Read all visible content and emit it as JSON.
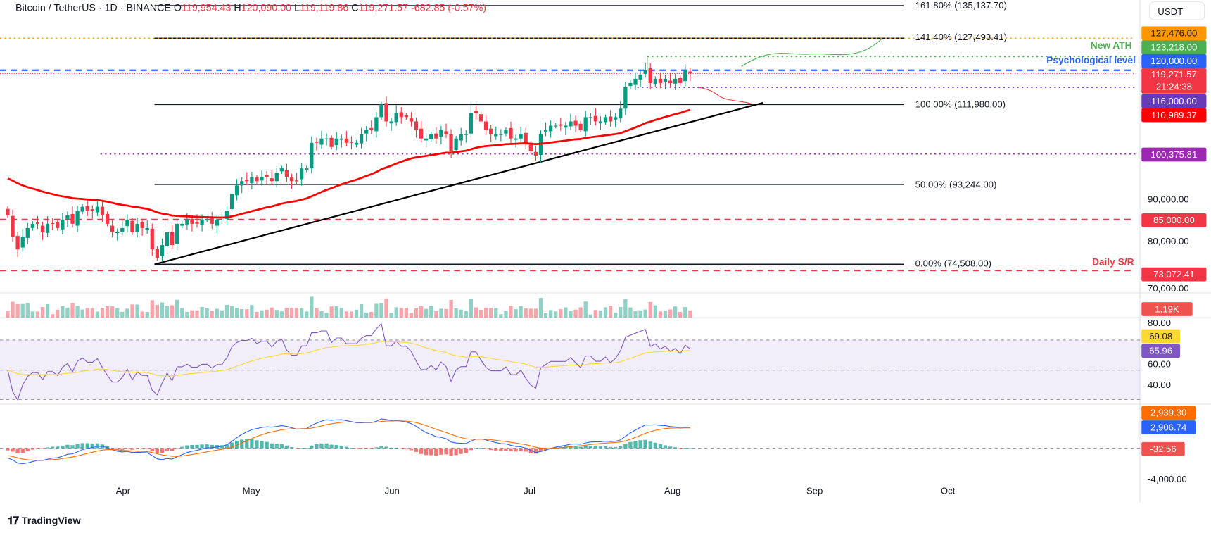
{
  "header": {
    "symbol": "Bitcoin / TetherUS · 1D · BINANCE",
    "open_label": "O",
    "open": "119,954.43",
    "high_label": "H",
    "high": "120,090.00",
    "low_label": "L",
    "low": "119,119.86",
    "close_label": "C",
    "close": "119,271.57",
    "change": "-682.85 (-0.57%)"
  },
  "currency": "USDT",
  "price_tags": [
    {
      "text": "127,476.00",
      "color": "#ff9800",
      "textColor": "#131722",
      "price": 127476
    },
    {
      "text": "123,218.00",
      "color": "#4caf50",
      "price": 123218
    },
    {
      "text": "120,000.00",
      "color": "#2962ff",
      "price": 120000
    },
    {
      "text": "119,271.57",
      "sub": "21:24:38",
      "color": "#f23645",
      "price": 119271.57
    },
    {
      "text": "116,000.00",
      "color": "#673ab7",
      "price": 116000
    },
    {
      "text": "110,989.37",
      "color": "#ff0000",
      "price": 110989.37
    },
    {
      "text": "100,375.81",
      "color": "#9c27b0",
      "price": 100375.81
    },
    {
      "text": "85,000.00",
      "color": "#f23645",
      "price": 85000
    },
    {
      "text": "73,072.41",
      "color": "#f23645",
      "price": 73072.41
    }
  ],
  "price_axis": [
    "90,000.00",
    "80,000.00",
    "70,000.00"
  ],
  "volume_tag": "1.19K",
  "rsi": {
    "axis": [
      "80.00",
      "60.00",
      "40.00"
    ],
    "rsi_tag": "65.96",
    "ma_tag": "69.08",
    "rsi_color": "#7e57c2",
    "ma_color": "#fdd835"
  },
  "macd": {
    "signal_tag": "2,939.30",
    "macd_tag": "2,906.74",
    "hist_tag": "-32.56",
    "axis": [
      "-4,000.00"
    ],
    "macd_color": "#2962ff",
    "signal_color": "#ff6d00"
  },
  "dates": [
    "Apr",
    "May",
    "Jun",
    "Jul",
    "Aug",
    "Sep",
    "Oct"
  ],
  "fib_levels": [
    {
      "label": "161.80% (135,137.70)",
      "price": 135137.7
    },
    {
      "label": "141.40% (127,493.41)",
      "price": 127493.41
    },
    {
      "label": "100.00% (111,980.00)",
      "price": 111980
    },
    {
      "label": "50.00% (93,244.00)",
      "price": 93244
    },
    {
      "label": "0.00% (74,508.00)",
      "price": 74508
    }
  ],
  "annotations": {
    "ath": "New ATH",
    "psych": "Psychological level",
    "sr": "Daily S/R"
  },
  "colors": {
    "up": "#089981",
    "down": "#f23645",
    "ma": "#ff0000"
  },
  "chart_data": {
    "type": "candlestick",
    "start_date": "Mar 8",
    "interval": "1D",
    "ma_period": 50,
    "closes": [
      86,
      81,
      78,
      81,
      83,
      84,
      84,
      82,
      84,
      84,
      83,
      85,
      86,
      84,
      87,
      88,
      87,
      87,
      88,
      86,
      84,
      82,
      82,
      83,
      85,
      82,
      84,
      83,
      83,
      78,
      76,
      79,
      82,
      79,
      84,
      84,
      85,
      84,
      84,
      85,
      85,
      84,
      85,
      85,
      87,
      91,
      93,
      94,
      94,
      95,
      94,
      95,
      95,
      94,
      96,
      97,
      95,
      94,
      94,
      97,
      97,
      103,
      103,
      104,
      104,
      102,
      104,
      104,
      103,
      103,
      103,
      105,
      106,
      106,
      109,
      112,
      108,
      108,
      110,
      109,
      109,
      108,
      106,
      104,
      104,
      105,
      104,
      106,
      105,
      101,
      104,
      105,
      105,
      110,
      110,
      108,
      106,
      105,
      105,
      105,
      106,
      104,
      104,
      105,
      103,
      101,
      100,
      105,
      106,
      107,
      107,
      107,
      107,
      108,
      107,
      106,
      109,
      109,
      108,
      108,
      109,
      108,
      109,
      111,
      116,
      117,
      118,
      119,
      120,
      117,
      118,
      117,
      118,
      117,
      118,
      117,
      120,
      119.27
    ]
  }
}
